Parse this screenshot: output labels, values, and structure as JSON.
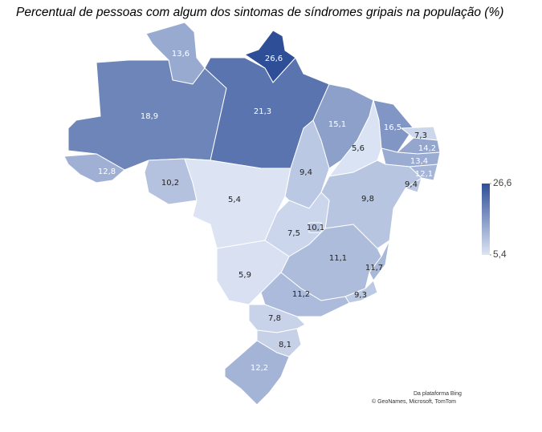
{
  "chart_data": {
    "type": "choropleth",
    "title": "Percentual de pessoas com algum dos sintomas de síndromes gripais na população (%)",
    "values": [
      26.6,
      13.6,
      18.9,
      21.3,
      12.8,
      10.2,
      5.4,
      9.4,
      15.1,
      5.6,
      16.5,
      7.3,
      14.2,
      13.4,
      12.1,
      9.4,
      9.8,
      7.5,
      10.1,
      11.1,
      11.7,
      9.3,
      5.9,
      11.2,
      7.8,
      8.1,
      12.2
    ],
    "value_labels": [
      "26,6",
      "13,6",
      "18,9",
      "21,3",
      "12,8",
      "10,2",
      "5,4",
      "9,4",
      "15,1",
      "5,6",
      "16,5",
      "7,3",
      "14,2",
      "13,4",
      "12,1",
      "9,4",
      "9,8",
      "7,5",
      "10,1",
      "11,1",
      "11,7",
      "9,3",
      "5,9",
      "11,2",
      "7,8",
      "8,1",
      "12,2"
    ],
    "colorscale": [
      "#dce4f4",
      "#2e4f98"
    ],
    "clim": [
      5.4,
      26.6
    ],
    "cticks": [
      {
        "value": 26.6,
        "label": "26,6"
      },
      {
        "value": 5.4,
        "label": "5,4"
      }
    ],
    "annotations": [
      "Da plataforma Bing",
      "© GeoNames, Microsoft, TomTom"
    ]
  }
}
